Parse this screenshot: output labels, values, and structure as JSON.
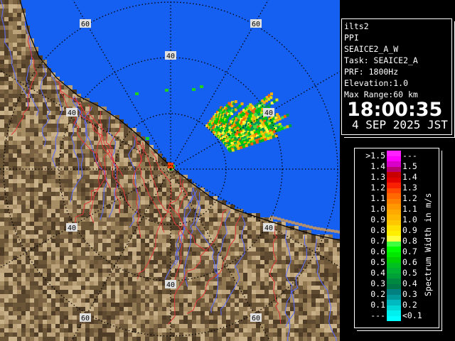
{
  "info": {
    "radar": "ilts2",
    "scan_type": "PPI",
    "product": "SEAICE2_A_W",
    "task": "Task: SEAICE2_A",
    "prf": "PRF: 1800Hz",
    "elevation": "Elevation:1.0",
    "max_range": "Max Range:60 km",
    "time": "18:00:35",
    "date": "4 SEP 2025 JST"
  },
  "range_labels": {
    "ring_40": "40",
    "ring_60": "60"
  },
  "legend": {
    "unit": "Spectrum Width in m/s",
    "rows": [
      {
        "low": ">1.5",
        "high": "---",
        "colors": [
          "#ff20ff",
          "#ff00ff"
        ]
      },
      {
        "low": "1.4",
        "high": "1.5",
        "colors": [
          "#d800c8",
          "#b80070"
        ]
      },
      {
        "low": "1.3",
        "high": "1.4",
        "colors": [
          "#c80000",
          "#e00000"
        ]
      },
      {
        "low": "1.2",
        "high": "1.3",
        "colors": [
          "#f82000",
          "#ff4800"
        ]
      },
      {
        "low": "1.1",
        "high": "1.2",
        "colors": [
          "#ff6800",
          "#ff8000"
        ]
      },
      {
        "low": "1.0",
        "high": "1.1",
        "colors": [
          "#ff9800",
          "#ffa800"
        ]
      },
      {
        "low": "0.9",
        "high": "1.0",
        "colors": [
          "#ffb800",
          "#ffc800"
        ]
      },
      {
        "low": "0.8",
        "high": "0.9",
        "colors": [
          "#ffe000",
          "#fff000"
        ]
      },
      {
        "low": "0.7",
        "high": "0.8",
        "colors": [
          "#ffff40",
          "#40ff40"
        ]
      },
      {
        "low": "0.6",
        "high": "0.7",
        "colors": [
          "#00ff00",
          "#00e800"
        ]
      },
      {
        "low": "0.5",
        "high": "0.6",
        "colors": [
          "#00d000",
          "#00c020"
        ]
      },
      {
        "low": "0.4",
        "high": "0.5",
        "colors": [
          "#00b030",
          "#00a038"
        ]
      },
      {
        "low": "0.3",
        "high": "0.4",
        "colors": [
          "#008840",
          "#007848"
        ]
      },
      {
        "low": "0.2",
        "high": "0.3",
        "colors": [
          "#008080",
          "#009898"
        ]
      },
      {
        "low": "0.1",
        "high": "0.2",
        "colors": [
          "#00b8c0",
          "#00d8d8"
        ]
      },
      {
        "low": "---",
        "high": "<0.1",
        "colors": [
          "#00f0f0",
          "#00ffff"
        ]
      }
    ]
  },
  "colors": {
    "sea": "#1560f0",
    "land": "#8a7250",
    "coastline": "#000000",
    "river": "#5a6cff",
    "boundary": "#e03838"
  }
}
